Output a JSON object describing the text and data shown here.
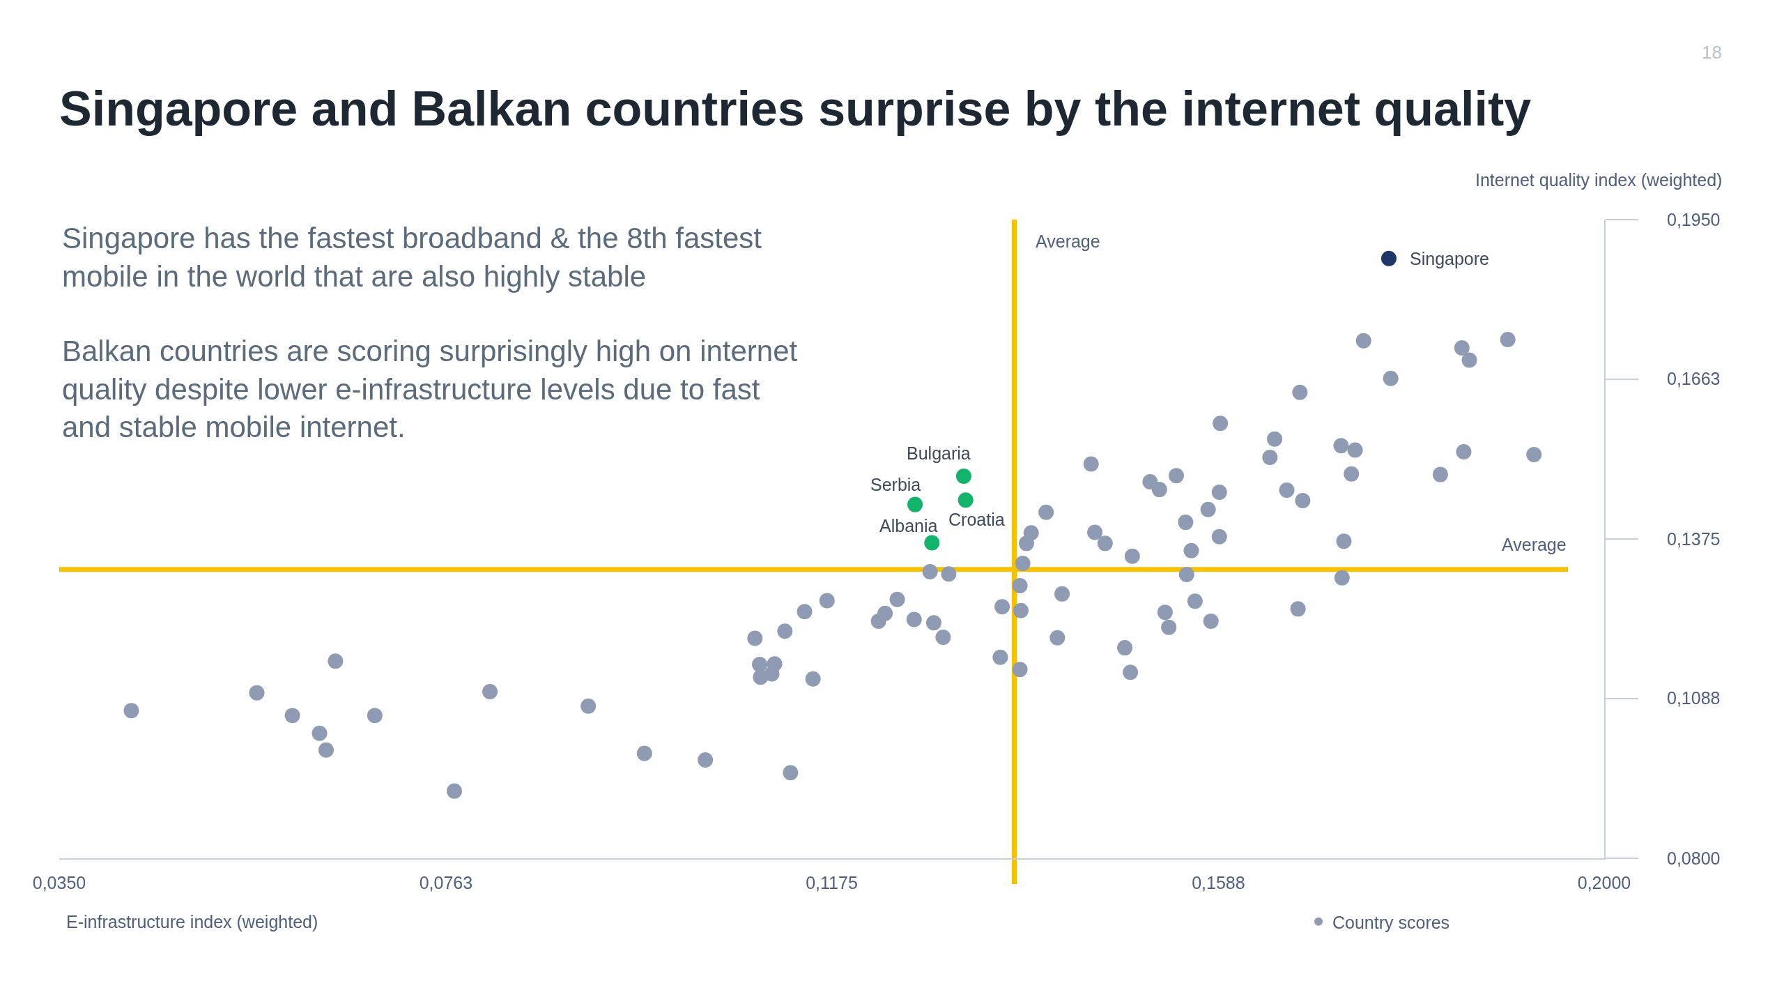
{
  "chart_data": {
    "type": "scatter",
    "title": "Singapore and Balkan countries surprise by the internet quality",
    "xlabel": "E-infrastructure index (weighted)",
    "ylabel": "Internet quality index (weighted)",
    "xlim": [
      0.035,
      0.2
    ],
    "xticks": [
      {
        "value": 0.035,
        "label": "0,0350"
      },
      {
        "value": 0.0763,
        "label": "0,0763"
      },
      {
        "value": 0.1175,
        "label": "0,1175"
      },
      {
        "value": 0.1588,
        "label": "0,1588"
      },
      {
        "value": 0.2,
        "label": "0,2000"
      }
    ],
    "ylim": [
      0.08,
      0.195
    ],
    "yticks": [
      {
        "value": 0.08,
        "label": "0,0800"
      },
      {
        "value": 0.1088,
        "label": "0,1088"
      },
      {
        "value": 0.1375,
        "label": "0,1375"
      },
      {
        "value": 0.1663,
        "label": "0,1663"
      },
      {
        "value": 0.195,
        "label": "0,1950"
      }
    ],
    "marker": "circle",
    "legend": "bottom right",
    "series": [
      {
        "name": "Country scores",
        "color": "#8e9bb3",
        "x": [
          0.0427,
          0.0561,
          0.0645,
          0.0599,
          0.0628,
          0.0635,
          0.0687,
          0.081,
          0.0772,
          0.0915,
          0.0975,
          0.104,
          0.1131,
          0.1452,
          0.1404,
          0.1388,
          0.1383,
          0.1456,
          0.1467,
          0.1379,
          0.128,
          0.13,
          0.1376,
          0.1421,
          0.1357,
          0.1377,
          0.1245,
          0.1232,
          0.1225,
          0.1263,
          0.1284,
          0.1294,
          0.117,
          0.1146,
          0.1125,
          0.1093,
          0.1416,
          0.1355,
          0.1376,
          0.1098,
          0.1114,
          0.1099,
          0.1111,
          0.1155,
          0.1743,
          0.1848,
          0.1856,
          0.1897,
          0.1772,
          0.1675,
          0.159,
          0.1648,
          0.1643,
          0.1719,
          0.1734,
          0.173,
          0.185,
          0.1825,
          0.1925,
          0.1515,
          0.1525,
          0.1543,
          0.1589,
          0.1577,
          0.1553,
          0.1661,
          0.1678,
          0.1496,
          0.1559,
          0.1589,
          0.1722,
          0.1554,
          0.172,
          0.1563,
          0.1531,
          0.1535,
          0.158,
          0.1673,
          0.1488,
          0.1494
        ],
        "values": [
          0.1066,
          0.1098,
          0.1155,
          0.1057,
          0.1025,
          0.0995,
          0.1057,
          0.11,
          0.0921,
          0.1074,
          0.0989,
          0.0977,
          0.0954,
          0.151,
          0.1423,
          0.1386,
          0.1367,
          0.1387,
          0.1367,
          0.1331,
          0.1316,
          0.1312,
          0.1291,
          0.1276,
          0.1253,
          0.1246,
          0.1266,
          0.1241,
          0.1227,
          0.123,
          0.1224,
          0.1198,
          0.1264,
          0.1244,
          0.1209,
          0.1196,
          0.1197,
          0.1162,
          0.114,
          0.1149,
          0.115,
          0.1126,
          0.1132,
          0.1123,
          0.1732,
          0.1719,
          0.1697,
          0.1734,
          0.1664,
          0.1639,
          0.1583,
          0.1555,
          0.1522,
          0.1543,
          0.1535,
          0.1492,
          0.1532,
          0.1491,
          0.1527,
          0.1478,
          0.1464,
          0.1489,
          0.1459,
          0.1428,
          0.1405,
          0.1463,
          0.1444,
          0.1344,
          0.1354,
          0.1379,
          0.1371,
          0.1311,
          0.1305,
          0.1263,
          0.1243,
          0.1216,
          0.1227,
          0.1249,
          0.1179,
          0.1135
        ]
      },
      {
        "color": "#12b36b",
        "x": [
          0.1316,
          0.1264,
          0.1282,
          0.1318
        ],
        "values": [
          0.1488,
          0.1437,
          0.1368,
          0.1445
        ]
      },
      {
        "color": "#1d3766",
        "x": [
          0.177
        ],
        "values": [
          0.188
        ]
      }
    ],
    "ref_lines": [
      {
        "axis": "x",
        "value": 0.137,
        "label": "Average",
        "color": "#f6c100"
      },
      {
        "axis": "y",
        "value": 0.132,
        "label": "Average",
        "color": "#f6c100"
      }
    ],
    "annotations": [
      "18",
      "Singapore has the fastest broadband & the 8th fastest mobile in the world that are also highly stable",
      "Balkan countries are scoring surprisingly high on internet quality despite lower e-infrastructure levels due to fast and stable mobile internet.",
      {
        "text": "Singapore",
        "x": 0.177,
        "y": 0.188
      },
      {
        "text": "Bulgaria",
        "x": 0.1316,
        "y": 0.1488
      },
      {
        "text": "Serbia",
        "x": 0.1264,
        "y": 0.1437
      },
      {
        "text": "Albania",
        "x": 0.1282,
        "y": 0.1368
      },
      {
        "text": "Croatia",
        "x": 0.1318,
        "y": 0.1445
      }
    ]
  }
}
